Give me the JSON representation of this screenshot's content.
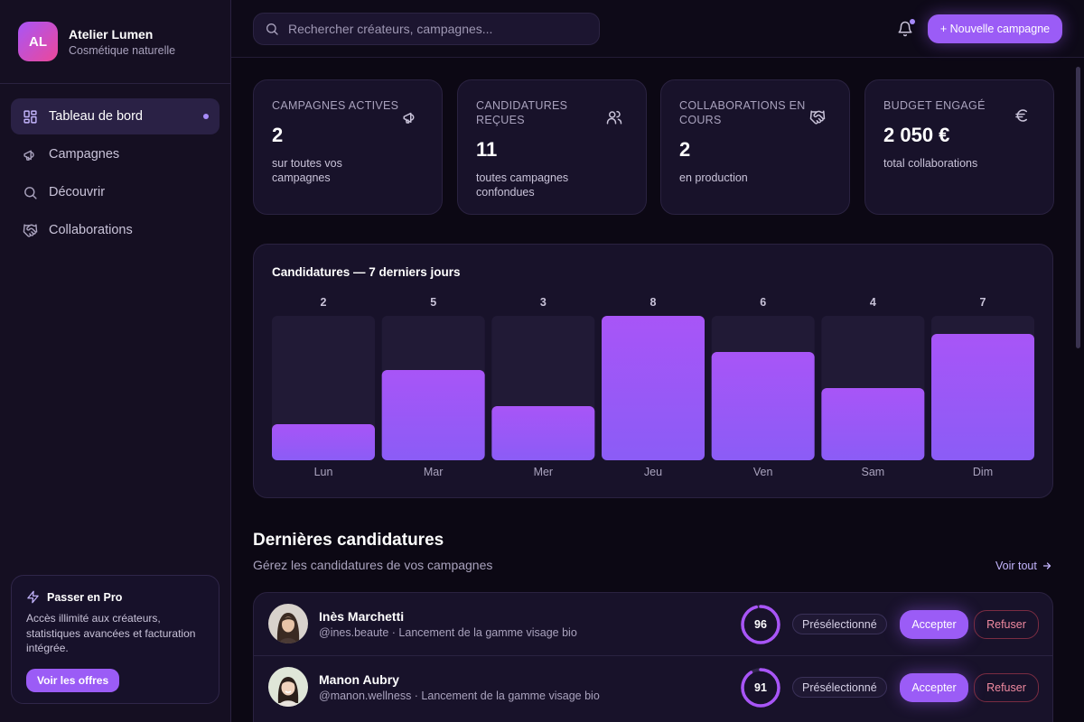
{
  "brand": {
    "initials": "AL",
    "name": "Atelier Lumen",
    "tagline": "Cosmétique naturelle"
  },
  "nav": [
    {
      "label": "Tableau de bord",
      "icon": "dashboard-icon",
      "active": true
    },
    {
      "label": "Campagnes",
      "icon": "megaphone-icon"
    },
    {
      "label": "Découvrir",
      "icon": "search-icon"
    },
    {
      "label": "Collaborations",
      "icon": "handshake-icon"
    }
  ],
  "promo": {
    "title": "Passer en Pro",
    "description": "Accès illimité aux créateurs, statistiques avancées et facturation intégrée.",
    "button": "Voir les offres"
  },
  "search": {
    "placeholder": "Rechercher créateurs, campagnes..."
  },
  "header": {
    "new_campaign": "+ Nouvelle campagne"
  },
  "stats": [
    {
      "label": "CAMPAGNES ACTIVES",
      "value": "2",
      "sub": "sur toutes vos campagnes",
      "icon": "megaphone-icon"
    },
    {
      "label": "CANDIDATURES REÇUES",
      "value": "11",
      "sub": "toutes campagnes confondues",
      "icon": "users-icon"
    },
    {
      "label": "COLLABORATIONS EN COURS",
      "value": "2",
      "sub": "en production",
      "icon": "handshake-icon"
    },
    {
      "label": "BUDGET ENGAGÉ",
      "value": "2 050 €",
      "sub": "total collaborations",
      "icon": "euro-icon"
    }
  ],
  "chart_data": {
    "type": "bar",
    "title": "Candidatures — 7 derniers jours",
    "categories": [
      "Lun",
      "Mar",
      "Mer",
      "Jeu",
      "Ven",
      "Sam",
      "Dim"
    ],
    "values": [
      2,
      5,
      3,
      8,
      6,
      4,
      7
    ],
    "ylim": [
      0,
      8
    ],
    "colors": {
      "bar_top": "#a855f7",
      "bar_bottom": "#8b5cf6",
      "track": "#211a36"
    }
  },
  "applications": {
    "title": "Dernières candidatures",
    "subtitle": "Gérez les candidatures de vos campagnes",
    "see_all": "Voir tout",
    "rows": [
      {
        "name": "Inès Marchetti",
        "meta": "@ines.beaute · Lancement de la gamme visage bio",
        "score": 96,
        "status": "Présélectionné",
        "accept": "Accepter",
        "refuse": "Refuser"
      },
      {
        "name": "Manon Aubry",
        "meta": "@manon.wellness · Lancement de la gamme visage bio",
        "score": 91,
        "status": "Présélectionné",
        "accept": "Accepter",
        "refuse": "Refuser"
      }
    ]
  }
}
